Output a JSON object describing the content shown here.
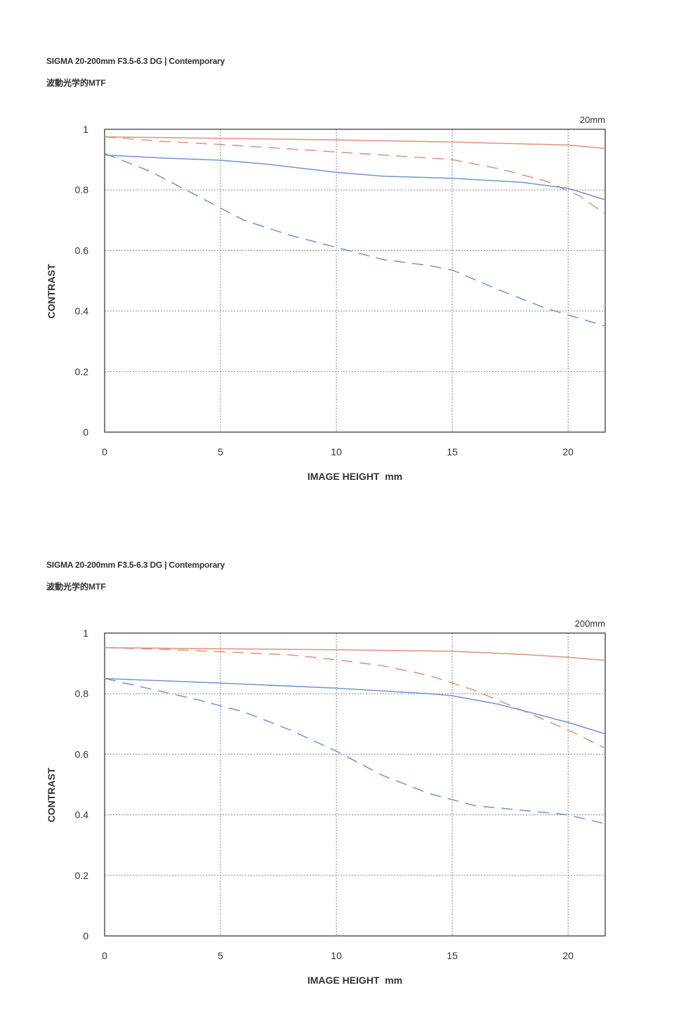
{
  "charts": [
    {
      "header": {
        "title": "SIGMA 20-200mm F3.5-6.3 DG | Contemporary",
        "subtitle": "波動光学的MTF"
      },
      "chart_data": {
        "type": "line",
        "title": "20mm",
        "xlabel": "IMAGE HEIGHT  mm",
        "ylabel": "CONTRAST",
        "xlim": [
          0,
          21.6
        ],
        "ylim": [
          0,
          1
        ],
        "xticks": [
          "0",
          "5",
          "10",
          "15",
          "20"
        ],
        "yticks": [
          "0",
          "0.2",
          "0.4",
          "0.6",
          "0.8",
          "1"
        ],
        "grid": true,
        "series": [
          {
            "color": "#e0907a",
            "style": "solid",
            "x": [
              0,
              5,
              10,
              15,
              18,
              20,
              21.6
            ],
            "y": [
              0.975,
              0.97,
              0.965,
              0.958,
              0.952,
              0.948,
              0.937
            ]
          },
          {
            "color": "#e0907a",
            "style": "dashed",
            "x": [
              0,
              2.5,
              5,
              10,
              15,
              17,
              19,
              20.5,
              21.6
            ],
            "y": [
              0.975,
              0.96,
              0.95,
              0.925,
              0.9,
              0.87,
              0.83,
              0.78,
              0.72
            ]
          },
          {
            "color": "#6f93d8",
            "style": "solid",
            "x": [
              0,
              2.5,
              5,
              7,
              10,
              12,
              15,
              18,
              20,
              21.6
            ],
            "y": [
              0.915,
              0.905,
              0.898,
              0.885,
              0.858,
              0.845,
              0.838,
              0.825,
              0.805,
              0.767
            ]
          },
          {
            "color": "#6f93d8",
            "style": "dashed",
            "x": [
              0,
              2,
              4,
              6,
              8,
              10,
              12,
              14,
              15,
              17,
              19,
              21.6
            ],
            "y": [
              0.92,
              0.86,
              0.78,
              0.7,
              0.65,
              0.61,
              0.57,
              0.55,
              0.535,
              0.47,
              0.41,
              0.35
            ]
          }
        ]
      }
    },
    {
      "header": {
        "title": "SIGMA 20-200mm F3.5-6.3 DG | Contemporary",
        "subtitle": "波動光学的MTF"
      },
      "chart_data": {
        "type": "line",
        "title": "200mm",
        "xlabel": "IMAGE HEIGHT  mm",
        "ylabel": "CONTRAST",
        "xlim": [
          0,
          21.6
        ],
        "ylim": [
          0,
          1
        ],
        "xticks": [
          "0",
          "5",
          "10",
          "15",
          "20"
        ],
        "yticks": [
          "0",
          "0.2",
          "0.4",
          "0.6",
          "0.8",
          "1"
        ],
        "grid": true,
        "series": [
          {
            "color": "#e0907a",
            "style": "solid",
            "x": [
              0,
              5,
              10,
              15,
              18,
              20,
              21.6
            ],
            "y": [
              0.952,
              0.948,
              0.945,
              0.94,
              0.93,
              0.92,
              0.91
            ]
          },
          {
            "color": "#e0907a",
            "style": "dashed",
            "x": [
              0,
              3,
              6,
              8,
              10,
              12,
              14,
              16,
              18,
              20,
              21.6
            ],
            "y": [
              0.952,
              0.945,
              0.935,
              0.928,
              0.912,
              0.892,
              0.86,
              0.81,
              0.745,
              0.68,
              0.62
            ]
          },
          {
            "color": "#6f93d8",
            "style": "solid",
            "x": [
              0,
              5,
              10,
              14,
              15,
              17,
              19,
              20,
              21.6
            ],
            "y": [
              0.85,
              0.835,
              0.818,
              0.8,
              0.793,
              0.765,
              0.725,
              0.705,
              0.667
            ]
          },
          {
            "color": "#6f93d8",
            "style": "dashed",
            "x": [
              0,
              2,
              4,
              6,
              8,
              10,
              12,
              14,
              16,
              18,
              20,
              21.6
            ],
            "y": [
              0.85,
              0.815,
              0.78,
              0.74,
              0.68,
              0.61,
              0.53,
              0.47,
              0.43,
              0.415,
              0.4,
              0.37
            ]
          }
        ]
      }
    }
  ]
}
